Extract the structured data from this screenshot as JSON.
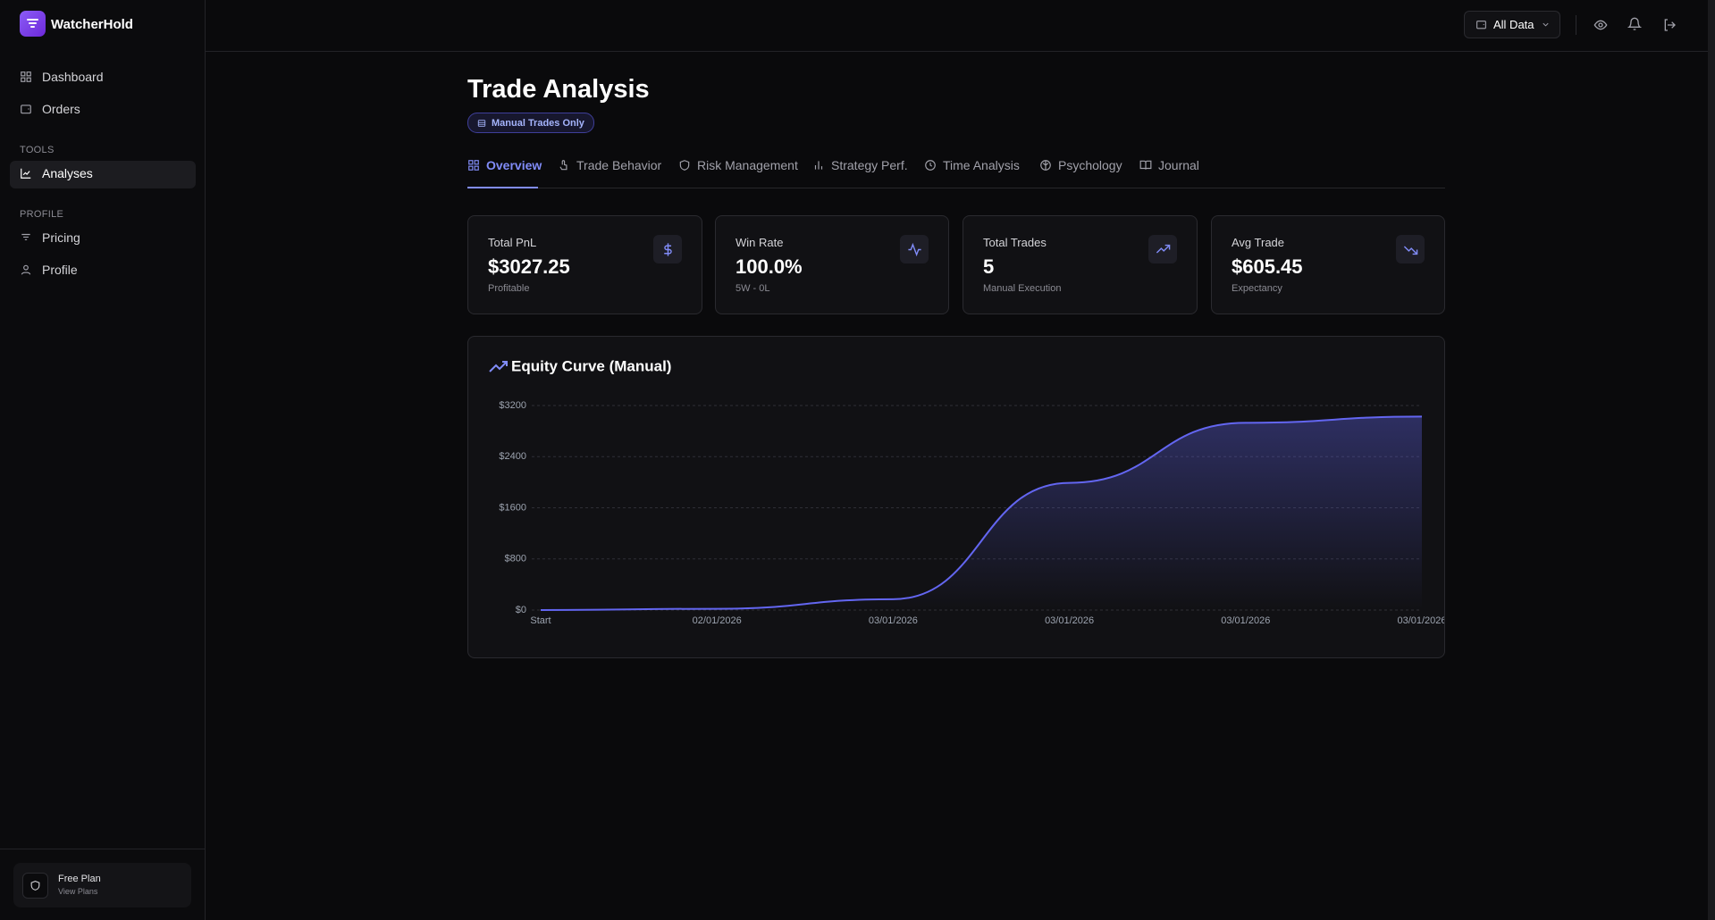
{
  "sidebar": {
    "brand": "WatcherHold",
    "nav": [
      "Dashboard",
      "Orders"
    ],
    "tools_heading": "TOOLS",
    "tools": [
      "Analyses"
    ],
    "profile_heading": "PROFILE",
    "profile": [
      "Pricing",
      "Profile"
    ],
    "plan": {
      "title": "Free Plan",
      "link": "View Plans"
    }
  },
  "header": {
    "filter": "All Data"
  },
  "page": {
    "title": "Trade Analysis",
    "badge": "Manual Trades Only",
    "tabs": [
      "Overview",
      "Trade Behavior",
      "Risk Management",
      "Strategy Perf.",
      "Time Analysis",
      "Psychology",
      "Journal"
    ]
  },
  "stats": [
    {
      "label": "Total PnL",
      "value": "$3027.25",
      "note": "Profitable"
    },
    {
      "label": "Win Rate",
      "value": "100.0%",
      "note": "5W - 0L"
    },
    {
      "label": "Total Trades",
      "value": "5",
      "note": "Manual Execution"
    },
    {
      "label": "Avg Trade",
      "value": "$605.45",
      "note": "Expectancy"
    }
  ],
  "chart_data": {
    "type": "area",
    "title": "Equity Curve (Manual)",
    "categories": [
      "Start",
      "02/01/2026",
      "03/01/2026",
      "03/01/2026",
      "03/01/2026",
      "03/01/2026"
    ],
    "values": [
      0,
      20,
      170,
      1990,
      2930,
      3027.25
    ],
    "color": "#6366f1",
    "ylim": [
      0,
      3200
    ],
    "yticks": [
      {
        "value": 0,
        "label": "$0"
      },
      {
        "value": 800,
        "label": "$800"
      },
      {
        "value": 1600,
        "label": "$1600"
      },
      {
        "value": 2400,
        "label": "$2400"
      },
      {
        "value": 3200,
        "label": "$3200"
      }
    ],
    "grid": true
  }
}
